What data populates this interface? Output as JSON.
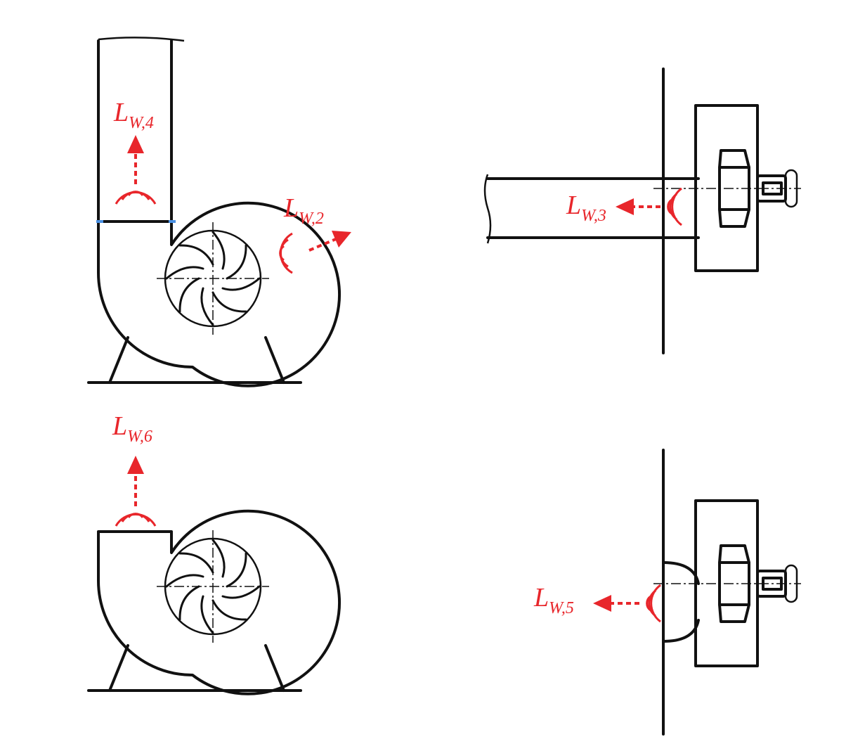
{
  "labels": [
    {
      "id": "lw4",
      "main": "L",
      "sub": "W,4"
    },
    {
      "id": "lw2",
      "main": "L",
      "sub": "W,2"
    },
    {
      "id": "lw3",
      "main": "L",
      "sub": "W,3"
    },
    {
      "id": "lw6",
      "main": "L",
      "sub": "W,6"
    },
    {
      "id": "lw5",
      "main": "L",
      "sub": "W,5"
    }
  ],
  "colors": {
    "accent": "#e8262b",
    "ink": "#111111",
    "background": "#ffffff"
  }
}
